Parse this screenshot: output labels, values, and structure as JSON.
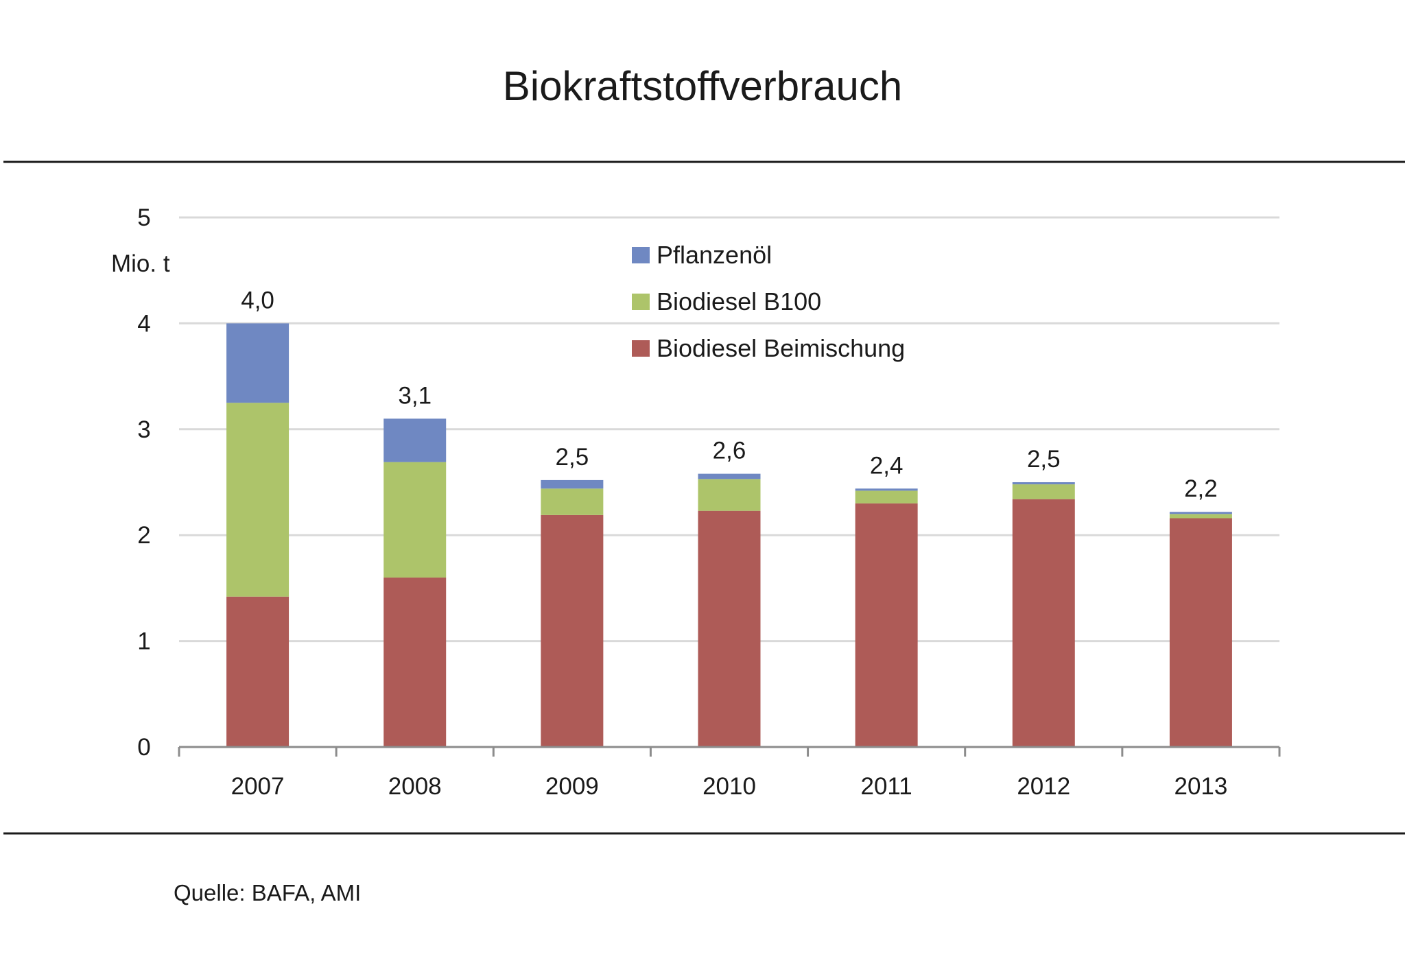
{
  "chart_data": {
    "type": "bar",
    "stacked": true,
    "title": "Biokraftstoffverbrauch",
    "ylabel": "Mio. t",
    "xlabel": "",
    "ylim": [
      0,
      5
    ],
    "yticks": [
      "0",
      "1",
      "2",
      "3",
      "4",
      "5"
    ],
    "grid": true,
    "legend_position": "top-center",
    "categories": [
      "2007",
      "2008",
      "2009",
      "2010",
      "2011",
      "2012",
      "2013"
    ],
    "series": [
      {
        "name": "Biodiesel Beimischung",
        "color": "#AE5B57",
        "values": [
          1.42,
          1.6,
          2.19,
          2.23,
          2.3,
          2.34,
          2.16
        ]
      },
      {
        "name": "Biodiesel B100",
        "color": "#ADC46A",
        "values": [
          1.83,
          1.09,
          0.25,
          0.3,
          0.12,
          0.14,
          0.04
        ]
      },
      {
        "name": "Pflanzenöl",
        "color": "#6F88C2",
        "values": [
          0.75,
          0.41,
          0.08,
          0.05,
          0.02,
          0.02,
          0.02
        ]
      }
    ],
    "totals_labels": [
      "4,0",
      "3,1",
      "2,5",
      "2,6",
      "2,4",
      "2,5",
      "2,2"
    ],
    "legend_order": [
      "Pflanzenöl",
      "Biodiesel B100",
      "Biodiesel Beimischung"
    ],
    "source": "Quelle: BAFA, AMI"
  }
}
